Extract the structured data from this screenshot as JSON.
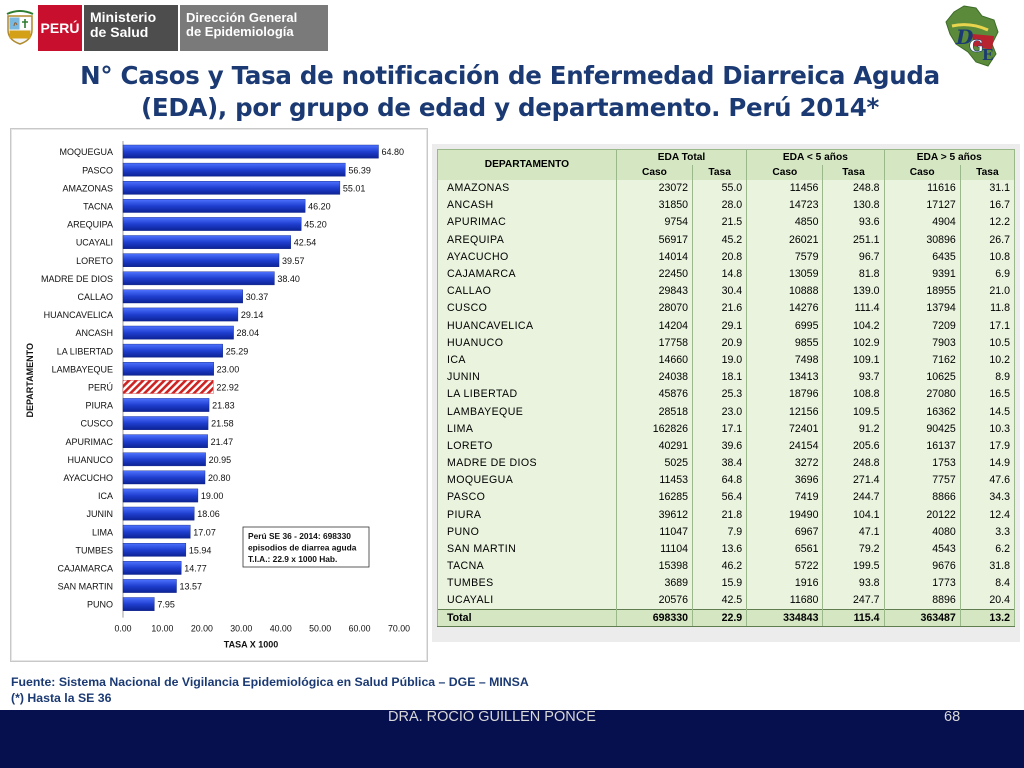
{
  "header": {
    "brand_peru": "PERÚ",
    "brand_ministerio": [
      "Ministerio",
      "de Salud"
    ],
    "brand_direccion": [
      "Dirección General",
      "de Epidemiología"
    ]
  },
  "title": {
    "line1": "N° Casos y Tasa de notificación de Enfermedad Diarreica Aguda",
    "line2": "(EDA), por grupo de edad y departamento. Perú 2014*"
  },
  "chart_data": {
    "type": "bar",
    "orientation": "horizontal",
    "categories": [
      "MOQUEGUA",
      "PASCO",
      "AMAZONAS",
      "TACNA",
      "AREQUIPA",
      "UCAYALI",
      "LORETO",
      "MADRE DE DIOS",
      "CALLAO",
      "HUANCAVELICA",
      "ANCASH",
      "LA LIBERTAD",
      "LAMBAYEQUE",
      "PERÚ",
      "PIURA",
      "CUSCO",
      "APURIMAC",
      "HUANUCO",
      "AYACUCHO",
      "ICA",
      "JUNIN",
      "LIMA",
      "TUMBES",
      "CAJAMARCA",
      "SAN MARTIN",
      "PUNO"
    ],
    "values": [
      64.8,
      56.39,
      55.01,
      46.2,
      45.2,
      42.54,
      39.57,
      38.4,
      30.37,
      29.14,
      28.04,
      25.29,
      23.0,
      22.92,
      21.83,
      21.58,
      21.47,
      20.95,
      20.8,
      19.0,
      18.06,
      17.07,
      15.94,
      14.77,
      13.57,
      7.95
    ],
    "value_labels": [
      "64.80",
      "56.39",
      "55.01",
      "46.20",
      "45.20",
      "42.54",
      "39.57",
      "38.40",
      "30.37",
      "29.14",
      "28.04",
      "25.29",
      "23.00",
      "22.92",
      "21.83",
      "21.58",
      "21.47",
      "20.95",
      "20.80",
      "19.00",
      "18.06",
      "17.07",
      "15.94",
      "14.77",
      "13.57",
      "7.95"
    ],
    "highlight_category": "PERÚ",
    "xlabel": "TASA X 1000",
    "ylabel": "DEPARTAMENTO",
    "xlim": [
      0,
      70
    ],
    "xticks": [
      "0.00",
      "10.00",
      "20.00",
      "30.00",
      "40.00",
      "50.00",
      "60.00",
      "70.00"
    ],
    "annotation": [
      "Perú SE 36 - 2014: 698330",
      "episodios de diarrea aguda",
      "T.I.A.: 22.9 x 1000 Hab."
    ],
    "bar_color": "#1f3fd0",
    "highlight_color": "#cc2222"
  },
  "table": {
    "header_departamento": "DEPARTAMENTO",
    "groups": [
      "EDA Total",
      "EDA < 5 años",
      "EDA > 5 años"
    ],
    "subheaders": [
      "Caso",
      "Tasa",
      "Caso",
      "Tasa",
      "Caso",
      "Tasa"
    ],
    "rows": [
      [
        "AMAZONAS",
        "23072",
        "55.0",
        "11456",
        "248.8",
        "11616",
        "31.1"
      ],
      [
        "ANCASH",
        "31850",
        "28.0",
        "14723",
        "130.8",
        "17127",
        "16.7"
      ],
      [
        "APURIMAC",
        "9754",
        "21.5",
        "4850",
        "93.6",
        "4904",
        "12.2"
      ],
      [
        "AREQUIPA",
        "56917",
        "45.2",
        "26021",
        "251.1",
        "30896",
        "26.7"
      ],
      [
        "AYACUCHO",
        "14014",
        "20.8",
        "7579",
        "96.7",
        "6435",
        "10.8"
      ],
      [
        "CAJAMARCA",
        "22450",
        "14.8",
        "13059",
        "81.8",
        "9391",
        "6.9"
      ],
      [
        "CALLAO",
        "29843",
        "30.4",
        "10888",
        "139.0",
        "18955",
        "21.0"
      ],
      [
        "CUSCO",
        "28070",
        "21.6",
        "14276",
        "111.4",
        "13794",
        "11.8"
      ],
      [
        "HUANCAVELICA",
        "14204",
        "29.1",
        "6995",
        "104.2",
        "7209",
        "17.1"
      ],
      [
        "HUANUCO",
        "17758",
        "20.9",
        "9855",
        "102.9",
        "7903",
        "10.5"
      ],
      [
        "ICA",
        "14660",
        "19.0",
        "7498",
        "109.1",
        "7162",
        "10.2"
      ],
      [
        "JUNIN",
        "24038",
        "18.1",
        "13413",
        "93.7",
        "10625",
        "8.9"
      ],
      [
        "LA LIBERTAD",
        "45876",
        "25.3",
        "18796",
        "108.8",
        "27080",
        "16.5"
      ],
      [
        "LAMBAYEQUE",
        "28518",
        "23.0",
        "12156",
        "109.5",
        "16362",
        "14.5"
      ],
      [
        "LIMA",
        "162826",
        "17.1",
        "72401",
        "91.2",
        "90425",
        "10.3"
      ],
      [
        "LORETO",
        "40291",
        "39.6",
        "24154",
        "205.6",
        "16137",
        "17.9"
      ],
      [
        "MADRE DE DIOS",
        "5025",
        "38.4",
        "3272",
        "248.8",
        "1753",
        "14.9"
      ],
      [
        "MOQUEGUA",
        "11453",
        "64.8",
        "3696",
        "271.4",
        "7757",
        "47.6"
      ],
      [
        "PASCO",
        "16285",
        "56.4",
        "7419",
        "244.7",
        "8866",
        "34.3"
      ],
      [
        "PIURA",
        "39612",
        "21.8",
        "19490",
        "104.1",
        "20122",
        "12.4"
      ],
      [
        "PUNO",
        "11047",
        "7.9",
        "6967",
        "47.1",
        "4080",
        "3.3"
      ],
      [
        "SAN MARTIN",
        "11104",
        "13.6",
        "6561",
        "79.2",
        "4543",
        "6.2"
      ],
      [
        "TACNA",
        "15398",
        "46.2",
        "5722",
        "199.5",
        "9676",
        "31.8"
      ],
      [
        "TUMBES",
        "3689",
        "15.9",
        "1916",
        "93.8",
        "1773",
        "8.4"
      ],
      [
        "UCAYALI",
        "20576",
        "42.5",
        "11680",
        "247.7",
        "8896",
        "20.4"
      ]
    ],
    "total": [
      "Total",
      "698330",
      "22.9",
      "334843",
      "115.4",
      "363487",
      "13.2"
    ]
  },
  "source": {
    "line1": "Fuente: Sistema Nacional de Vigilancia Epidemiológica en Salud Pública – DGE – MINSA",
    "line2": "(*) Hasta la SE 36"
  },
  "footer": {
    "author": "DRA. ROCIO GUILLEN PONCE",
    "page": "68"
  },
  "colors": {
    "title": "#1b3a73",
    "footer_bg": "#06104f",
    "table_bg": "#e9f3dd",
    "table_header_bg": "#d5e6c3"
  }
}
